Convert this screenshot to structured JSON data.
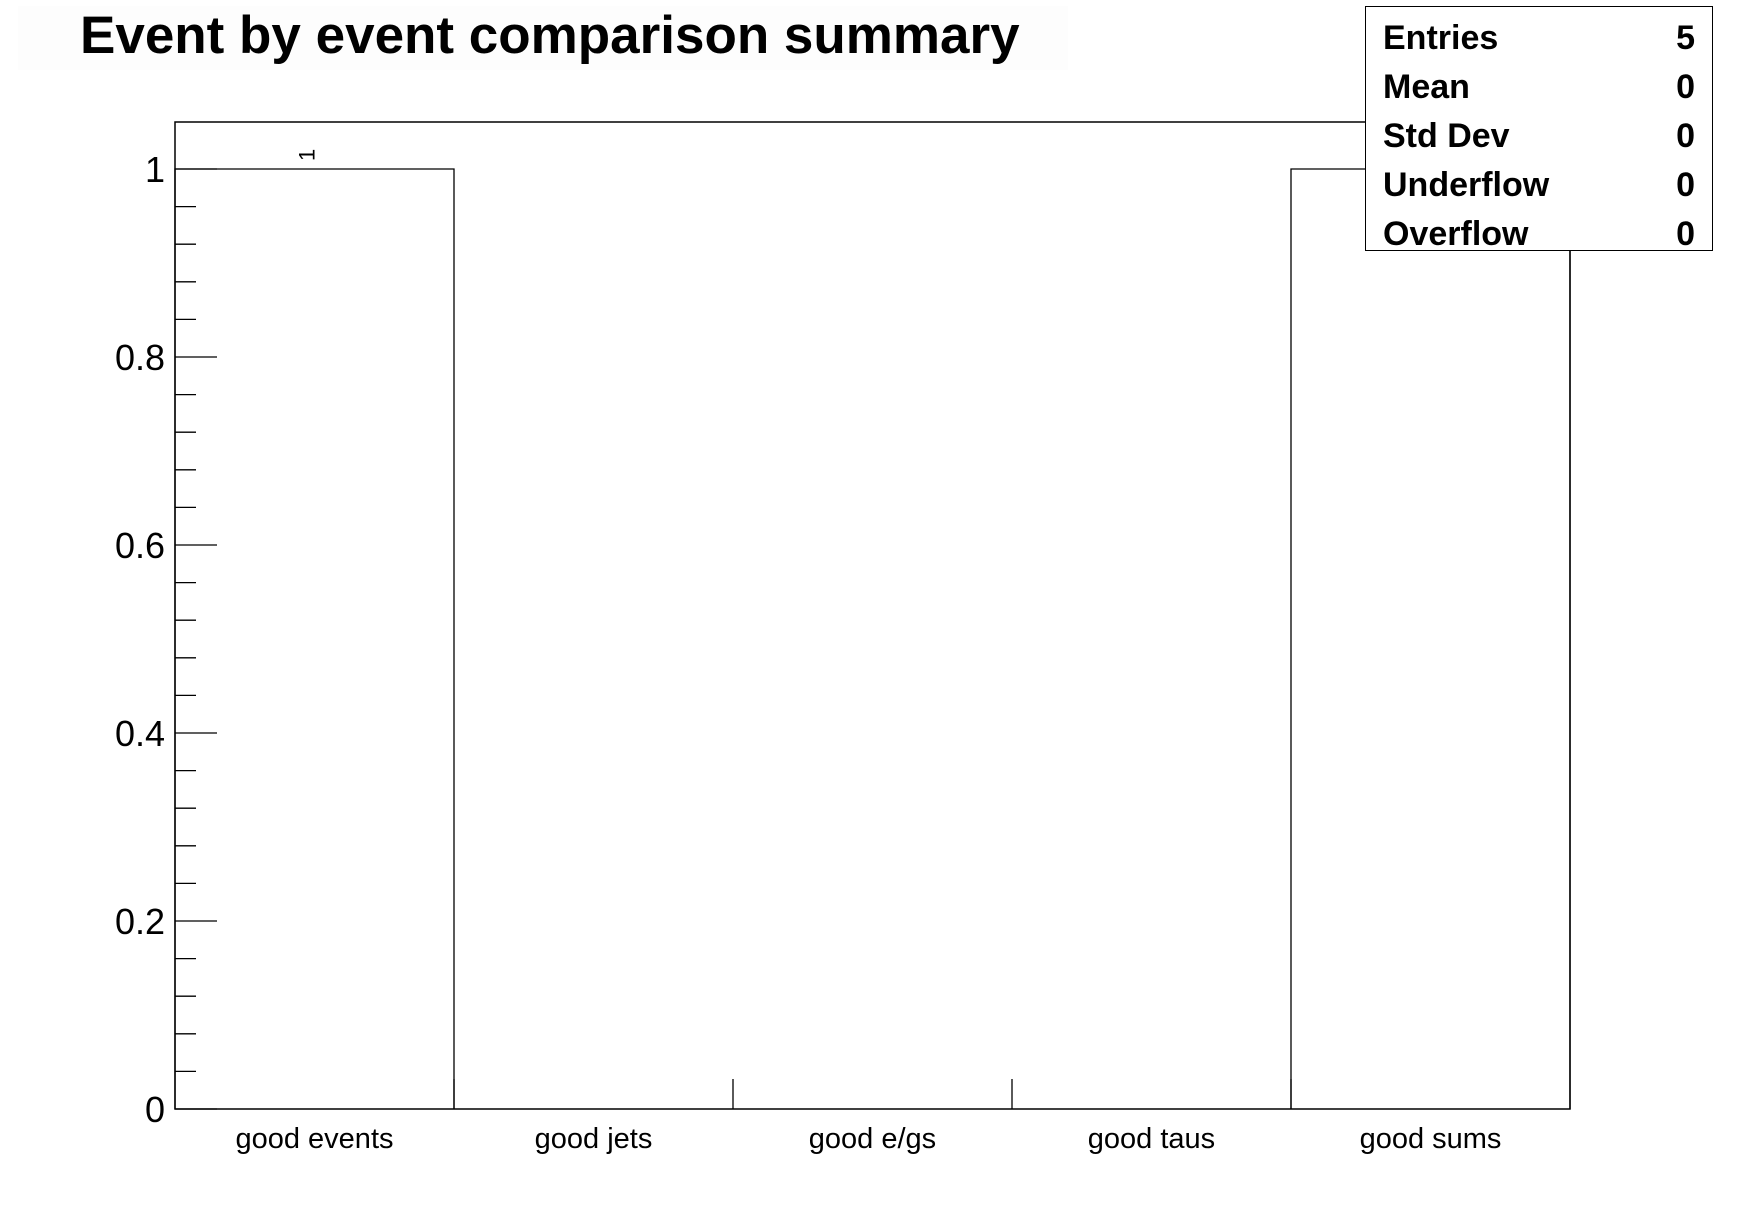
{
  "chart_data": {
    "type": "bar",
    "title": "Event by event comparison summary",
    "categories": [
      "good events",
      "good jets",
      "good e/gs",
      "good taus",
      "good sums"
    ],
    "values": [
      1,
      0,
      0,
      0,
      1
    ],
    "bar_labels": [
      "1",
      "",
      "",
      "",
      ""
    ],
    "xlabel": "",
    "ylabel": "",
    "ylim": [
      0,
      1.05
    ],
    "yticks": [
      "0",
      "0.2",
      "0.4",
      "0.6",
      "0.8",
      "1"
    ],
    "grid": false,
    "legend": "none",
    "stats_box": {
      "placement": "top-right",
      "rows": [
        {
          "label": "Entries",
          "value": "5"
        },
        {
          "label": "Mean",
          "value": "0"
        },
        {
          "label": "Std Dev",
          "value": "0"
        },
        {
          "label": "Underflow",
          "value": "0"
        },
        {
          "label": "Overflow",
          "value": "0"
        }
      ]
    },
    "colors": {
      "bar_outline": "#000000",
      "bar_fill": "#ffffff",
      "background": "#ffffff"
    }
  }
}
